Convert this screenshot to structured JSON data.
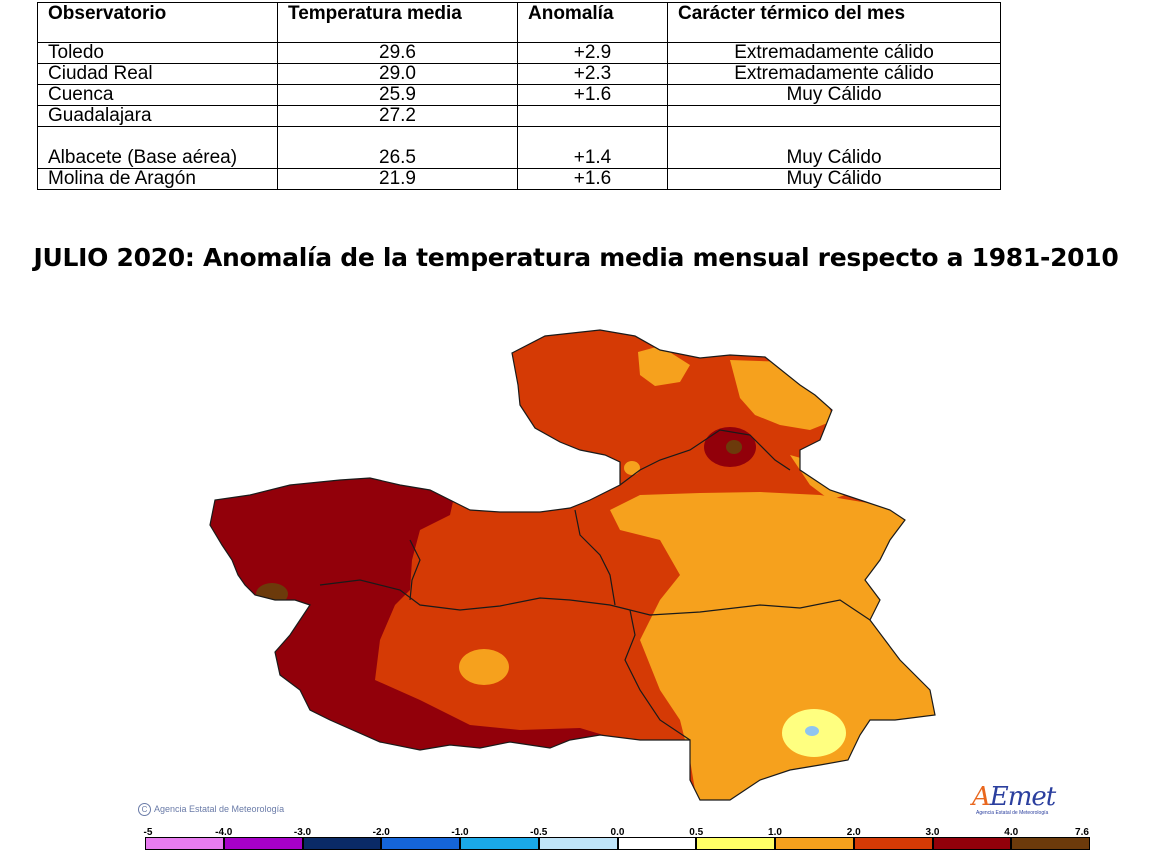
{
  "table": {
    "headers": [
      "Observatorio",
      "Temperatura media",
      "Anomalía",
      "Carácter térmico del mes"
    ],
    "rows": [
      {
        "station": "Toledo",
        "temp": "29.6",
        "anomaly": "+2.9",
        "character": "Extremadamente cálido"
      },
      {
        "station": "Ciudad Real",
        "temp": "29.0",
        "anomaly": "+2.3",
        "character": "Extremadamente cálido"
      },
      {
        "station": "Cuenca",
        "temp": "25.9",
        "anomaly": "+1.6",
        "character": "Muy Cálido"
      },
      {
        "station": "Guadalajara",
        "temp": "27.2",
        "anomaly": "",
        "character": ""
      },
      {
        "station": "Albacete (Base aérea)",
        "temp": "26.5",
        "anomaly": "+1.4",
        "character": "Muy Cálido"
      },
      {
        "station": "Molina de Aragón",
        "temp": "21.9",
        "anomaly": "+1.6",
        "character": "Muy Cálido"
      }
    ]
  },
  "map": {
    "title": "JULIO 2020: Anomalía de la temperatura media mensual respecto a 1981-2010",
    "copyright": "Agencia Estatal de Meteorología",
    "logo": {
      "name_a": "A",
      "name_rest": "Emet",
      "subtitle": "Agencia Estatal de Meteorología"
    },
    "colors": {
      "lt_1": "#ffff80",
      "1_2": "#f6a11d",
      "2_3": "#d53a05",
      "3_4": "#92000a",
      "gt_4": "#6c3a0b",
      "blue": "#8fc5f0"
    }
  },
  "legend": {
    "ticks": [
      "-5",
      "-4.0",
      "-3.0",
      "-2.0",
      "-1.0",
      "-0.5",
      "0.0",
      "0.5",
      "1.0",
      "2.0",
      "3.0",
      "4.0",
      "7.6"
    ],
    "colors": [
      "#e87cf0",
      "#a600c8",
      "#0a2a66",
      "#1565d8",
      "#1aa8e8",
      "#bfe4f8",
      "#ffffff",
      "#ffff66",
      "#f6a11d",
      "#d53a05",
      "#92000a",
      "#6c3a0b"
    ]
  }
}
